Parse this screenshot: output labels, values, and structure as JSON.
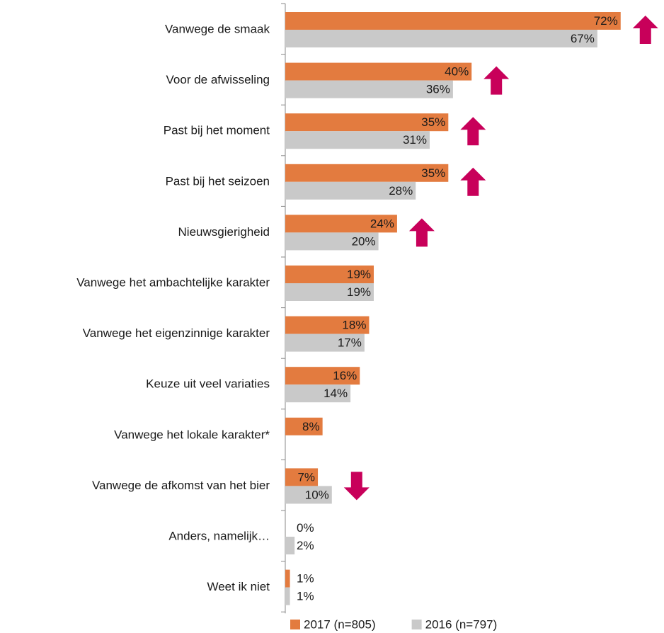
{
  "chart_data": {
    "type": "bar",
    "orientation": "horizontal",
    "categories": [
      "Vanwege de smaak",
      "Voor de afwisseling",
      "Past bij het moment",
      "Past bij het seizoen",
      "Nieuwsgierigheid",
      "Vanwege het ambachtelijke karakter",
      "Vanwege het eigenzinnige karakter",
      "Keuze uit veel variaties",
      "Vanwege het lokale karakter*",
      "Vanwege de afkomst van het bier",
      "Anders, namelijk…",
      "Weet ik niet"
    ],
    "series": [
      {
        "name": "2017 (n=805)",
        "color": "#e37b3f",
        "values": [
          72,
          40,
          35,
          35,
          24,
          19,
          18,
          16,
          8,
          7,
          0,
          1
        ],
        "value_labels": [
          "72%",
          "40%",
          "35%",
          "35%",
          "24%",
          "19%",
          "18%",
          "16%",
          "8%",
          "7%",
          "0%",
          "1%"
        ]
      },
      {
        "name": "2016 (n=797)",
        "color": "#c9c9c9",
        "values": [
          67,
          36,
          31,
          28,
          20,
          19,
          17,
          14,
          null,
          10,
          2,
          1
        ],
        "value_labels": [
          "67%",
          "36%",
          "31%",
          "28%",
          "20%",
          "19%",
          "17%",
          "14%",
          null,
          "10%",
          "2%",
          "1%"
        ]
      }
    ],
    "changes": [
      "up",
      "up",
      "up",
      "up",
      "up",
      null,
      null,
      null,
      null,
      "down",
      null,
      null
    ],
    "change_color": "#c8005a",
    "legend": "bottom"
  }
}
